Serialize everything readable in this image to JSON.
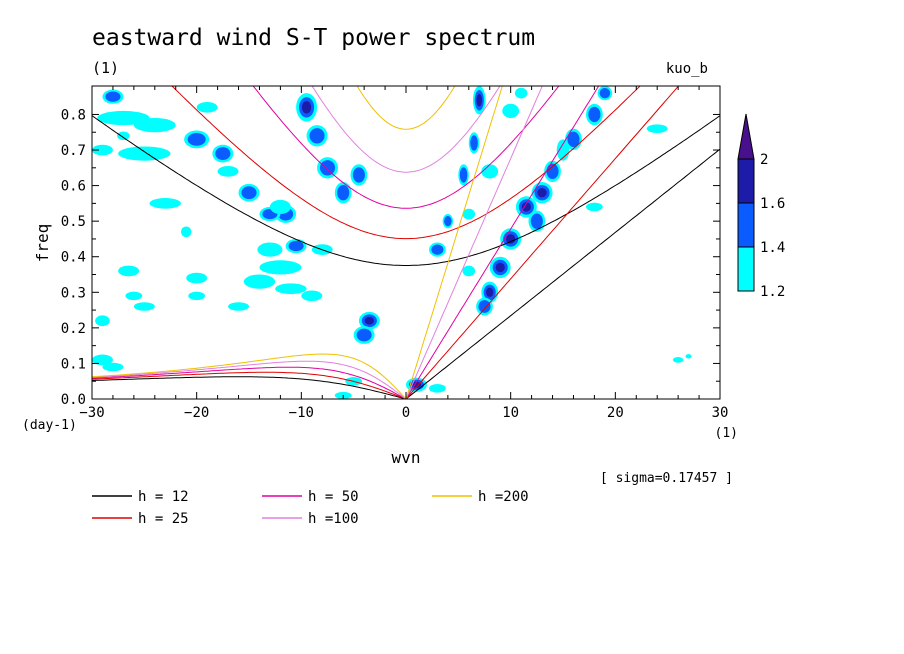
{
  "chart_data": {
    "type": "contour",
    "title": "eastward wind S-T power spectrum",
    "subtitle_left": "(1)",
    "subtitle_right": "kuo_b",
    "xlabel": "wvn",
    "ylabel": "freq",
    "x_unit": "(1)",
    "y_unit": "(day-1)",
    "xlim": [
      -30,
      30
    ],
    "ylim": [
      0,
      0.88
    ],
    "xticks": [
      -30,
      -20,
      -10,
      0,
      10,
      20,
      30
    ],
    "yticks": [
      0.0,
      0.1,
      0.2,
      0.3,
      0.4,
      0.5,
      0.6,
      0.7,
      0.8
    ],
    "note": "[ sigma=0.17457 ]",
    "colorbar": {
      "levels": [
        "1.2",
        "1.4",
        "1.6",
        "2"
      ],
      "colors": [
        "#00ffff",
        "#0a5cff",
        "#1c1ca8",
        "#48108c"
      ]
    },
    "dispersion_curves": [
      {
        "label": "h = 12",
        "h": 12,
        "color": "#000000"
      },
      {
        "label": "h = 25",
        "h": 25,
        "color": "#e00000"
      },
      {
        "label": "h = 50",
        "h": 50,
        "color": "#e000a0"
      },
      {
        "label": "h =100",
        "h": 100,
        "color": "#e080e0"
      },
      {
        "label": "h =200",
        "h": 200,
        "color": "#f0c000"
      }
    ],
    "spectral_blobs": [
      {
        "x": 7,
        "y": 0.84,
        "rx": 0.6,
        "ry": 0.04,
        "lvl": 3
      },
      {
        "x": 6.5,
        "y": 0.72,
        "rx": 0.5,
        "ry": 0.03,
        "lvl": 2
      },
      {
        "x": 5.5,
        "y": 0.63,
        "rx": 0.5,
        "ry": 0.03,
        "lvl": 2
      },
      {
        "x": 10,
        "y": 0.45,
        "rx": 1.0,
        "ry": 0.03,
        "lvl": 3
      },
      {
        "x": 9,
        "y": 0.37,
        "rx": 1.0,
        "ry": 0.03,
        "lvl": 3
      },
      {
        "x": 8,
        "y": 0.3,
        "rx": 0.8,
        "ry": 0.03,
        "lvl": 3
      },
      {
        "x": 7.5,
        "y": 0.26,
        "rx": 0.8,
        "ry": 0.025,
        "lvl": 2
      },
      {
        "x": 11.5,
        "y": 0.54,
        "rx": 1.0,
        "ry": 0.03,
        "lvl": 3
      },
      {
        "x": 13,
        "y": 0.58,
        "rx": 1.0,
        "ry": 0.03,
        "lvl": 3
      },
      {
        "x": 14,
        "y": 0.64,
        "rx": 0.8,
        "ry": 0.03,
        "lvl": 2
      },
      {
        "x": 12.5,
        "y": 0.5,
        "rx": 0.8,
        "ry": 0.03,
        "lvl": 2
      },
      {
        "x": 16,
        "y": 0.73,
        "rx": 0.8,
        "ry": 0.03,
        "lvl": 2
      },
      {
        "x": 18,
        "y": 0.8,
        "rx": 0.8,
        "ry": 0.03,
        "lvl": 2
      },
      {
        "x": 19,
        "y": 0.86,
        "rx": 0.7,
        "ry": 0.02,
        "lvl": 2
      },
      {
        "x": 15,
        "y": 0.7,
        "rx": 0.6,
        "ry": 0.03,
        "lvl": 1
      },
      {
        "x": 1,
        "y": 0.04,
        "rx": 1.0,
        "ry": 0.02,
        "lvl": 3
      },
      {
        "x": -3.5,
        "y": 0.22,
        "rx": 1.0,
        "ry": 0.025,
        "lvl": 3
      },
      {
        "x": -4,
        "y": 0.18,
        "rx": 1.0,
        "ry": 0.025,
        "lvl": 2
      },
      {
        "x": -9.5,
        "y": 0.82,
        "rx": 1.0,
        "ry": 0.04,
        "lvl": 3
      },
      {
        "x": -8.5,
        "y": 0.74,
        "rx": 1.0,
        "ry": 0.03,
        "lvl": 2
      },
      {
        "x": -7.5,
        "y": 0.65,
        "rx": 1.0,
        "ry": 0.03,
        "lvl": 2
      },
      {
        "x": -6,
        "y": 0.58,
        "rx": 0.8,
        "ry": 0.03,
        "lvl": 2
      },
      {
        "x": -4.5,
        "y": 0.63,
        "rx": 0.8,
        "ry": 0.03,
        "lvl": 2
      },
      {
        "x": -28,
        "y": 0.85,
        "rx": 1.0,
        "ry": 0.02,
        "lvl": 2
      },
      {
        "x": -20,
        "y": 0.73,
        "rx": 1.2,
        "ry": 0.025,
        "lvl": 2
      },
      {
        "x": -17.5,
        "y": 0.69,
        "rx": 1.0,
        "ry": 0.025,
        "lvl": 2
      },
      {
        "x": -15,
        "y": 0.58,
        "rx": 1.0,
        "ry": 0.025,
        "lvl": 2
      },
      {
        "x": -11.5,
        "y": 0.52,
        "rx": 1.0,
        "ry": 0.025,
        "lvl": 2
      },
      {
        "x": -10.5,
        "y": 0.43,
        "rx": 1.0,
        "ry": 0.02,
        "lvl": 2
      },
      {
        "x": -13,
        "y": 0.52,
        "rx": 1.0,
        "ry": 0.02,
        "lvl": 2
      },
      {
        "x": 3,
        "y": 0.42,
        "rx": 0.8,
        "ry": 0.02,
        "lvl": 2
      },
      {
        "x": 4,
        "y": 0.5,
        "rx": 0.5,
        "ry": 0.02,
        "lvl": 2
      },
      {
        "x": -27,
        "y": 0.79,
        "rx": 2.5,
        "ry": 0.02,
        "lvl": 1
      },
      {
        "x": -24,
        "y": 0.77,
        "rx": 2.0,
        "ry": 0.02,
        "lvl": 1
      },
      {
        "x": -29,
        "y": 0.7,
        "rx": 1.0,
        "ry": 0.015,
        "lvl": 1
      },
      {
        "x": -25,
        "y": 0.69,
        "rx": 2.5,
        "ry": 0.02,
        "lvl": 1
      },
      {
        "x": -23,
        "y": 0.55,
        "rx": 1.5,
        "ry": 0.015,
        "lvl": 1
      },
      {
        "x": -13,
        "y": 0.42,
        "rx": 1.2,
        "ry": 0.02,
        "lvl": 1
      },
      {
        "x": -12,
        "y": 0.37,
        "rx": 2.0,
        "ry": 0.02,
        "lvl": 1
      },
      {
        "x": -14,
        "y": 0.33,
        "rx": 1.5,
        "ry": 0.02,
        "lvl": 1
      },
      {
        "x": -11,
        "y": 0.31,
        "rx": 1.5,
        "ry": 0.015,
        "lvl": 1
      },
      {
        "x": -9,
        "y": 0.29,
        "rx": 1.0,
        "ry": 0.015,
        "lvl": 1
      },
      {
        "x": -20,
        "y": 0.34,
        "rx": 1.0,
        "ry": 0.015,
        "lvl": 1
      },
      {
        "x": -26.5,
        "y": 0.36,
        "rx": 1.0,
        "ry": 0.015,
        "lvl": 1
      },
      {
        "x": -29,
        "y": 0.11,
        "rx": 1.0,
        "ry": 0.015,
        "lvl": 1
      },
      {
        "x": -29,
        "y": 0.22,
        "rx": 0.7,
        "ry": 0.015,
        "lvl": 1
      },
      {
        "x": -26,
        "y": 0.29,
        "rx": 0.8,
        "ry": 0.012,
        "lvl": 1
      },
      {
        "x": -20,
        "y": 0.29,
        "rx": 0.8,
        "ry": 0.012,
        "lvl": 1
      },
      {
        "x": -16,
        "y": 0.26,
        "rx": 1.0,
        "ry": 0.012,
        "lvl": 1
      },
      {
        "x": -25,
        "y": 0.26,
        "rx": 1.0,
        "ry": 0.012,
        "lvl": 1
      },
      {
        "x": -28,
        "y": 0.09,
        "rx": 1.0,
        "ry": 0.012,
        "lvl": 1
      },
      {
        "x": -27,
        "y": 0.74,
        "rx": 0.6,
        "ry": 0.012,
        "lvl": 1
      },
      {
        "x": -19,
        "y": 0.82,
        "rx": 1.0,
        "ry": 0.015,
        "lvl": 1
      },
      {
        "x": -17,
        "y": 0.64,
        "rx": 1.0,
        "ry": 0.015,
        "lvl": 1
      },
      {
        "x": -12,
        "y": 0.54,
        "rx": 1.0,
        "ry": 0.02,
        "lvl": 1
      },
      {
        "x": -8,
        "y": 0.42,
        "rx": 1.0,
        "ry": 0.015,
        "lvl": 1
      },
      {
        "x": -21,
        "y": 0.47,
        "rx": 0.5,
        "ry": 0.015,
        "lvl": 1
      },
      {
        "x": 8,
        "y": 0.64,
        "rx": 0.8,
        "ry": 0.02,
        "lvl": 1
      },
      {
        "x": 10,
        "y": 0.81,
        "rx": 0.8,
        "ry": 0.02,
        "lvl": 1
      },
      {
        "x": 11,
        "y": 0.86,
        "rx": 0.6,
        "ry": 0.015,
        "lvl": 1
      },
      {
        "x": 6,
        "y": 0.52,
        "rx": 0.6,
        "ry": 0.015,
        "lvl": 1
      },
      {
        "x": 6,
        "y": 0.36,
        "rx": 0.6,
        "ry": 0.015,
        "lvl": 1
      },
      {
        "x": 3,
        "y": 0.03,
        "rx": 0.8,
        "ry": 0.012,
        "lvl": 1
      },
      {
        "x": -5,
        "y": 0.05,
        "rx": 0.8,
        "ry": 0.012,
        "lvl": 1
      },
      {
        "x": -6,
        "y": 0.01,
        "rx": 0.8,
        "ry": 0.01,
        "lvl": 1
      },
      {
        "x": 18,
        "y": 0.54,
        "rx": 0.8,
        "ry": 0.012,
        "lvl": 1
      },
      {
        "x": 24,
        "y": 0.76,
        "rx": 1.0,
        "ry": 0.012,
        "lvl": 1
      },
      {
        "x": 26,
        "y": 0.11,
        "rx": 0.5,
        "ry": 0.008,
        "lvl": 1
      },
      {
        "x": 27,
        "y": 0.12,
        "rx": 0.3,
        "ry": 0.006,
        "lvl": 1
      }
    ]
  }
}
